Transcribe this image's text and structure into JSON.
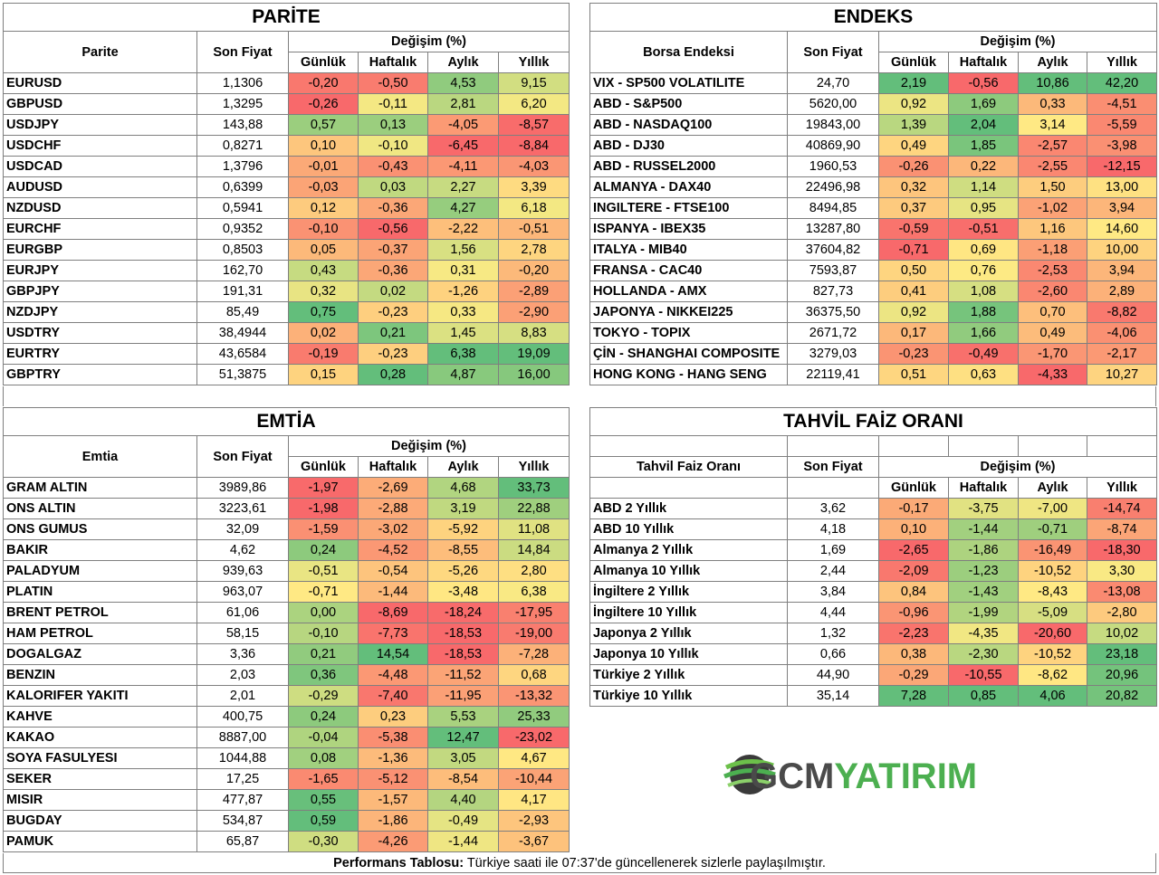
{
  "headers": {
    "son_fiyat": "Son Fiyat",
    "degisim": "Değişim (%)",
    "gunluk": "Günlük",
    "haftalik": "Haftalık",
    "aylik": "Aylık",
    "yillik": "Yıllık"
  },
  "parite": {
    "title": "PARİTE",
    "col": "Parite",
    "rows": [
      [
        "EURUSD",
        "1,1306",
        "-0,20",
        "-0,50",
        "4,53",
        "9,15"
      ],
      [
        "GBPUSD",
        "1,3295",
        "-0,26",
        "-0,11",
        "2,81",
        "6,20"
      ],
      [
        "USDJPY",
        "143,88",
        "0,57",
        "0,13",
        "-4,05",
        "-8,57"
      ],
      [
        "USDCHF",
        "0,8271",
        "0,10",
        "-0,10",
        "-6,45",
        "-8,84"
      ],
      [
        "USDCAD",
        "1,3796",
        "-0,01",
        "-0,43",
        "-4,11",
        "-4,03"
      ],
      [
        "AUDUSD",
        "0,6399",
        "-0,03",
        "0,03",
        "2,27",
        "3,39"
      ],
      [
        "NZDUSD",
        "0,5941",
        "0,12",
        "-0,36",
        "4,27",
        "6,18"
      ],
      [
        "EURCHF",
        "0,9352",
        "-0,10",
        "-0,56",
        "-2,22",
        "-0,51"
      ],
      [
        "EURGBP",
        "0,8503",
        "0,05",
        "-0,37",
        "1,56",
        "2,78"
      ],
      [
        "EURJPY",
        "162,70",
        "0,43",
        "-0,36",
        "0,31",
        "-0,20"
      ],
      [
        "GBPJPY",
        "191,31",
        "0,32",
        "0,02",
        "-1,26",
        "-2,89"
      ],
      [
        "NZDJPY",
        "85,49",
        "0,75",
        "-0,23",
        "0,33",
        "-2,90"
      ],
      [
        "USDTRY",
        "38,4944",
        "0,02",
        "0,21",
        "1,45",
        "8,83"
      ],
      [
        "EURTRY",
        "43,6584",
        "-0,19",
        "-0,23",
        "6,38",
        "19,09"
      ],
      [
        "GBPTRY",
        "51,3875",
        "0,15",
        "0,28",
        "4,87",
        "16,00"
      ]
    ]
  },
  "endeks": {
    "title": "ENDEKS",
    "col": "Borsa Endeksi",
    "rows": [
      [
        "VIX  - SP500 VOLATILITE",
        "24,70",
        "2,19",
        "-0,56",
        "10,86",
        "42,20"
      ],
      [
        "ABD - S&P500",
        "5620,00",
        "0,92",
        "1,69",
        "0,33",
        "-4,51"
      ],
      [
        "ABD - NASDAQ100",
        "19843,00",
        "1,39",
        "2,04",
        "3,14",
        "-5,59"
      ],
      [
        "ABD - DJ30",
        "40869,90",
        "0,49",
        "1,85",
        "-2,57",
        "-3,98"
      ],
      [
        "ABD - RUSSEL2000",
        "1960,53",
        "-0,26",
        "0,22",
        "-2,55",
        "-12,15"
      ],
      [
        "ALMANYA - DAX40",
        "22496,98",
        "0,32",
        "1,14",
        "1,50",
        "13,00"
      ],
      [
        "INGILTERE - FTSE100",
        "8494,85",
        "0,37",
        "0,95",
        "-1,02",
        "3,94"
      ],
      [
        "ISPANYA - IBEX35",
        "13287,80",
        "-0,59",
        "-0,51",
        "1,16",
        "14,60"
      ],
      [
        "ITALYA - MIB40",
        "37604,82",
        "-0,71",
        "0,69",
        "-1,18",
        "10,00"
      ],
      [
        "FRANSA - CAC40",
        "7593,87",
        "0,50",
        "0,76",
        "-2,53",
        "3,94"
      ],
      [
        "HOLLANDA - AMX",
        "827,73",
        "0,41",
        "1,08",
        "-2,60",
        "2,89"
      ],
      [
        "JAPONYA - NIKKEI225",
        "36375,50",
        "0,92",
        "1,88",
        "0,70",
        "-8,82"
      ],
      [
        "TOKYO - TOPIX",
        "2671,72",
        "0,17",
        "1,66",
        "0,49",
        "-4,06"
      ],
      [
        "ÇİN - SHANGHAI COMPOSITE",
        "3279,03",
        "-0,23",
        "-0,49",
        "-1,70",
        "-2,17"
      ],
      [
        "HONG KONG - HANG SENG",
        "22119,41",
        "0,51",
        "0,63",
        "-4,33",
        "10,27"
      ]
    ]
  },
  "emtia": {
    "title": "EMTİA",
    "col": "Emtia",
    "rows": [
      [
        "GRAM ALTIN",
        "3989,86",
        "-1,97",
        "-2,69",
        "4,68",
        "33,73"
      ],
      [
        "ONS ALTIN",
        "3223,61",
        "-1,98",
        "-2,88",
        "3,19",
        "22,88"
      ],
      [
        "ONS GUMUS",
        "32,09",
        "-1,59",
        "-3,02",
        "-5,92",
        "11,08"
      ],
      [
        "BAKIR",
        "4,62",
        "0,24",
        "-4,52",
        "-8,55",
        "14,84"
      ],
      [
        "PALADYUM",
        "939,63",
        "-0,51",
        "-0,54",
        "-5,26",
        "2,80"
      ],
      [
        "PLATIN",
        "963,07",
        "-0,71",
        "-1,44",
        "-3,48",
        "6,38"
      ],
      [
        "BRENT PETROL",
        "61,06",
        "0,00",
        "-8,69",
        "-18,24",
        "-17,95"
      ],
      [
        "HAM PETROL",
        "58,15",
        "-0,10",
        "-7,73",
        "-18,53",
        "-19,00"
      ],
      [
        "DOGALGAZ",
        "3,36",
        "0,21",
        "14,54",
        "-18,53",
        "-7,28"
      ],
      [
        "BENZIN",
        "2,03",
        "0,36",
        "-4,48",
        "-11,52",
        "0,68"
      ],
      [
        "KALORIFER YAKITI",
        "2,01",
        "-0,29",
        "-7,40",
        "-11,95",
        "-13,32"
      ],
      [
        "KAHVE",
        "400,75",
        "0,24",
        "0,23",
        "5,53",
        "25,33"
      ],
      [
        "KAKAO",
        "8887,00",
        "-0,04",
        "-5,38",
        "12,47",
        "-23,02"
      ],
      [
        "SOYA FASULYESI",
        "1044,88",
        "0,08",
        "-1,36",
        "3,05",
        "4,67"
      ],
      [
        "SEKER",
        "17,25",
        "-1,65",
        "-5,12",
        "-8,54",
        "-10,44"
      ],
      [
        "MISIR",
        "477,87",
        "0,55",
        "-1,57",
        "4,40",
        "4,17"
      ],
      [
        "BUGDAY",
        "534,87",
        "0,59",
        "-1,86",
        "-0,49",
        "-2,93"
      ],
      [
        "PAMUK",
        "65,87",
        "-0,30",
        "-4,26",
        "-1,44",
        "-3,67"
      ]
    ]
  },
  "tahvil": {
    "title": "TAHVİL FAİZ ORANI",
    "col": "Tahvil Faiz Oranı",
    "rows": [
      [
        "ABD 2 Yıllık",
        "3,62",
        "-0,17",
        "-3,75",
        "-7,00",
        "-14,74"
      ],
      [
        "ABD 10 Yıllık",
        "4,18",
        "0,10",
        "-1,44",
        "-0,71",
        "-8,74"
      ],
      [
        "Almanya 2 Yıllık",
        "1,69",
        "-2,65",
        "-1,86",
        "-16,49",
        "-18,30"
      ],
      [
        "Almanya 10 Yıllık",
        "2,44",
        "-2,09",
        "-1,23",
        "-10,52",
        "3,30"
      ],
      [
        "İngiltere 2 Yıllık",
        "3,84",
        "0,84",
        "-1,43",
        "-8,43",
        "-13,08"
      ],
      [
        "İngiltere 10 Yıllık",
        "4,44",
        "-0,96",
        "-1,99",
        "-5,09",
        "-2,80"
      ],
      [
        "Japonya 2 Yıllık",
        "1,32",
        "-2,23",
        "-4,35",
        "-20,60",
        "10,02"
      ],
      [
        "Japonya 10 Yıllık",
        "0,66",
        "0,38",
        "-2,30",
        "-10,52",
        "23,18"
      ],
      [
        "Türkiye 2 Yıllık",
        "44,90",
        "-0,29",
        "-10,55",
        "-8,62",
        "20,96"
      ],
      [
        "Türkiye 10 Yıllık",
        "35,14",
        "7,28",
        "0,85",
        "4,06",
        "20,82"
      ]
    ]
  },
  "logo": {
    "text_dark": "GCM",
    "text_green": "YATIRIM",
    "color_dark": "#4a4a4a",
    "color_green": "#4caf50"
  },
  "footer": {
    "bold": "Performans Tablosu:",
    "text": " Türkiye saati ile 07:37'de güncellenerek sizlerle paylaşılmıştır."
  }
}
